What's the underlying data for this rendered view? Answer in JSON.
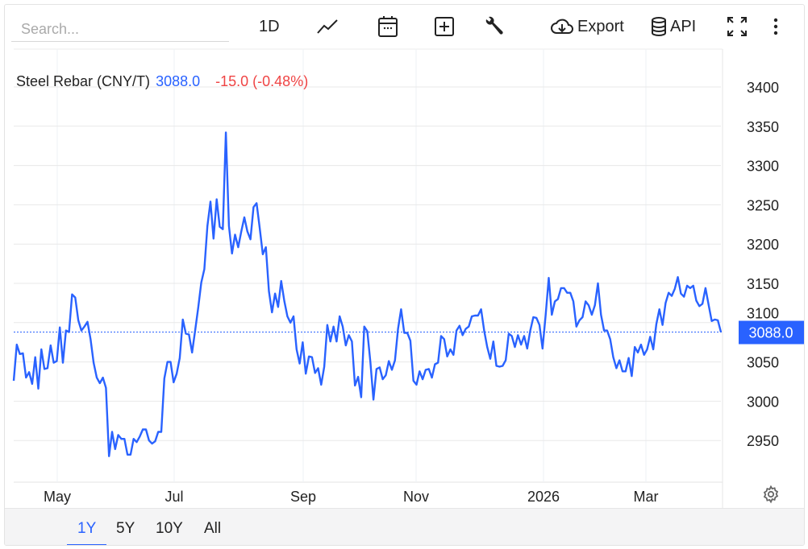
{
  "toolbar": {
    "search_placeholder": "Search...",
    "interval_label": "1D",
    "export_label": "Export",
    "api_label": "API",
    "icons": [
      "line-chart-icon",
      "calendar-icon",
      "add-indicator-icon",
      "wrench-icon",
      "cloud-download-icon",
      "database-icon",
      "fullscreen-icon",
      "more-vertical-icon"
    ]
  },
  "legend": {
    "name": "Steel Rebar (CNY/T)",
    "price": "3088.0",
    "change": "-15.0 (-0.48%)"
  },
  "price_tag": "3088.0",
  "ranges": [
    {
      "label": "1Y",
      "active": true
    },
    {
      "label": "5Y",
      "active": false
    },
    {
      "label": "10Y",
      "active": false
    },
    {
      "label": "All",
      "active": false
    }
  ],
  "colors": {
    "line": "#2962ff",
    "negative": "#ef4444",
    "grid": "#e8e8e8"
  },
  "chart_data": {
    "type": "line",
    "title": "",
    "xlabel": "",
    "ylabel": "",
    "ylim": [
      2880,
      3450
    ],
    "y_ticks": [
      3400,
      3350,
      3300,
      3250,
      3200,
      3150,
      3100,
      3050,
      3000,
      2950
    ],
    "x_ticks": [
      "May",
      "Jul",
      "Sep",
      "Nov",
      "2026",
      "Mar"
    ],
    "grid": true,
    "last_value": 3088.0,
    "series": [
      {
        "values": [
          3026,
          3072,
          3060,
          3061,
          3030,
          3037,
          3022,
          3056,
          3016,
          3066,
          3041,
          3042,
          3071,
          3049,
          3051,
          3094,
          3049,
          3090,
          3088,
          3136,
          3132,
          3103,
          3090,
          3095,
          3101,
          3079,
          3049,
          3030,
          3023,
          3030,
          3017,
          2930,
          2961,
          2939,
          2957,
          2952,
          2952,
          2932,
          2932,
          2952,
          2948,
          2955,
          2964,
          2964,
          2950,
          2946,
          2949,
          2961,
          2961,
          3029,
          3050,
          3050,
          3024,
          3035,
          3055,
          3104,
          3086,
          3085,
          3062,
          3090,
          3119,
          3151,
          3168,
          3223,
          3254,
          3207,
          3257,
          3222,
          3219,
          3342,
          3223,
          3188,
          3212,
          3196,
          3216,
          3234,
          3216,
          3206,
          3247,
          3252,
          3221,
          3187,
          3196,
          3140,
          3113,
          3137,
          3120,
          3153,
          3128,
          3108,
          3100,
          3108,
          3066,
          3048,
          3075,
          3035,
          3057,
          3056,
          3036,
          3042,
          3021,
          3044,
          3097,
          3076,
          3095,
          3076,
          3108,
          3095,
          3071,
          3084,
          3076,
          3020,
          3031,
          3005,
          3095,
          3089,
          3050,
          3002,
          3041,
          3043,
          3028,
          3033,
          3051,
          3040,
          3052,
          3092,
          3117,
          3087,
          3087,
          3077,
          3026,
          3021,
          3038,
          3028,
          3040,
          3041,
          3030,
          3047,
          3049,
          3083,
          3079,
          3057,
          3066,
          3059,
          3090,
          3096,
          3084,
          3092,
          3095,
          3108,
          3109,
          3109,
          3117,
          3090,
          3069,
          3054,
          3076,
          3045,
          3044,
          3045,
          3052,
          3086,
          3083,
          3069,
          3084,
          3072,
          3083,
          3067,
          3090,
          3107,
          3106,
          3097,
          3067,
          3110,
          3157,
          3110,
          3127,
          3130,
          3144,
          3144,
          3138,
          3138,
          3127,
          3095,
          3103,
          3107,
          3127,
          3122,
          3110,
          3122,
          3150,
          3110,
          3090,
          3090,
          3079,
          3056,
          3042,
          3052,
          3038,
          3038,
          3055,
          3032,
          3069,
          3062,
          3072,
          3059,
          3066,
          3082,
          3066,
          3098,
          3117,
          3097,
          3125,
          3138,
          3134,
          3143,
          3158,
          3137,
          3133,
          3147,
          3144,
          3147,
          3128,
          3121,
          3124,
          3144,
          3123,
          3102,
          3104,
          3103,
          3088
        ]
      }
    ]
  }
}
